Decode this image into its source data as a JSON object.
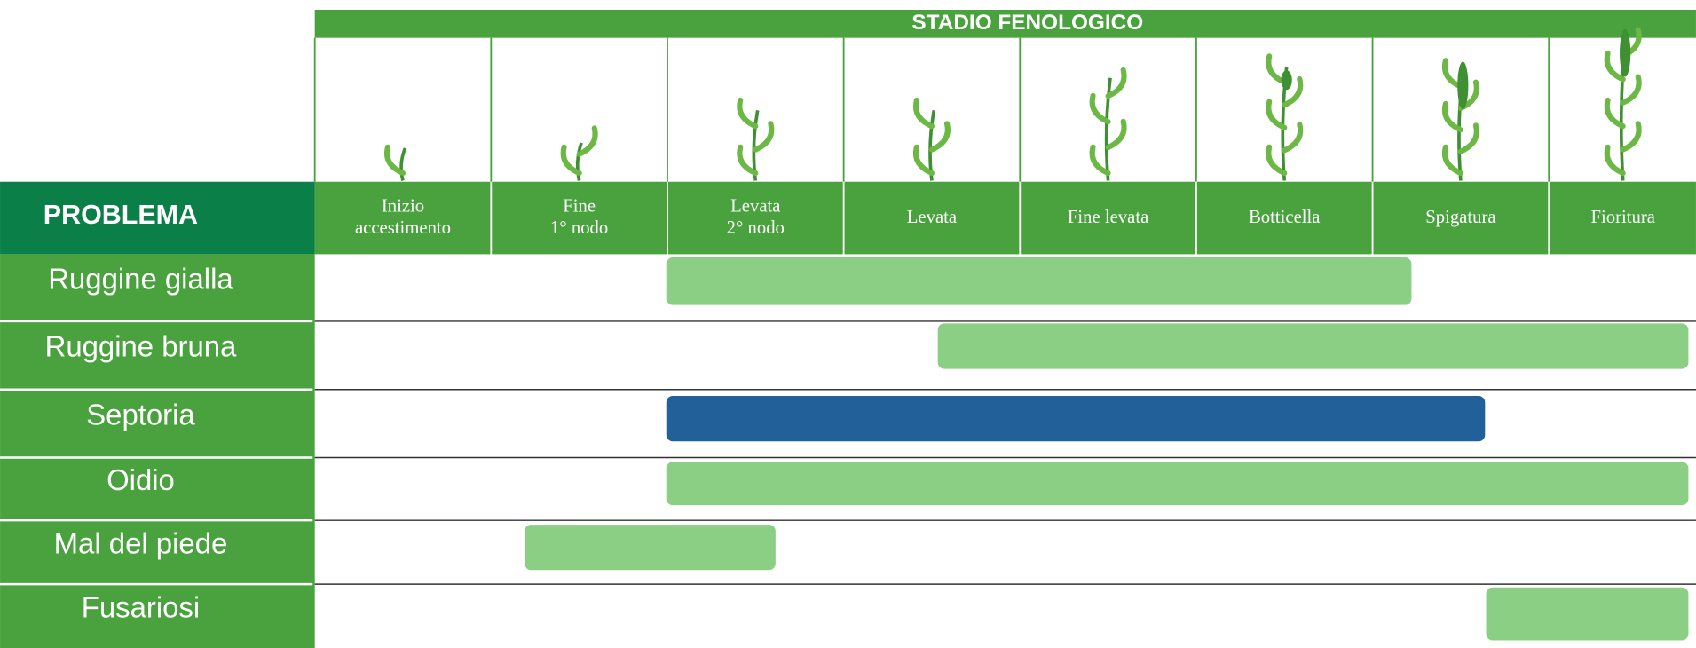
{
  "header": {
    "title": "STADIO FENOLOGICO",
    "row_header": "PROBLEMA"
  },
  "stages": [
    {
      "lines": [
        "Inizio",
        "accestimento"
      ]
    },
    {
      "lines": [
        "Fine",
        "1° nodo"
      ]
    },
    {
      "lines": [
        "Levata",
        "2° nodo"
      ]
    },
    {
      "lines": [
        "Levata"
      ]
    },
    {
      "lines": [
        "Fine levata"
      ]
    },
    {
      "lines": [
        "Botticella"
      ]
    },
    {
      "lines": [
        "Spigatura"
      ]
    },
    {
      "lines": [
        "Fioritura"
      ]
    }
  ],
  "problems": [
    {
      "name": "Ruggine gialla"
    },
    {
      "name": "Ruggine bruna"
    },
    {
      "name": "Septoria"
    },
    {
      "name": "Oidio"
    },
    {
      "name": "Mal del piede"
    },
    {
      "name": "Fusariosi"
    }
  ]
}
